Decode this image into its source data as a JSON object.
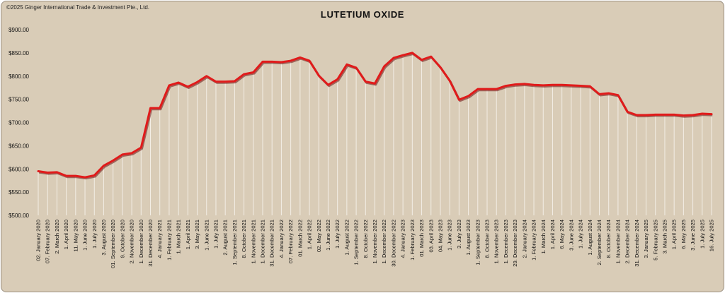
{
  "copyright": "©2025 Ginger International Trade & Investment Pte., Ltd.",
  "chart_data": {
    "type": "line",
    "title": "LUTETIUM OXIDE",
    "xlabel": "",
    "ylabel": "",
    "ylim": [
      500,
      900
    ],
    "y_ticks": [
      "$500.00",
      "$550.00",
      "$600.00",
      "$650.00",
      "$700.00",
      "$750.00",
      "$800.00",
      "$850.00",
      "$900.00"
    ],
    "grid": false,
    "legend": "none",
    "line_color": "#e01b1b",
    "drop_line_color": "#f3eee6",
    "categories": [
      "02. January 2020",
      "07. February 2020",
      "2. March 2020",
      "1. April 2020",
      "11. May 2020",
      "1. June 2020",
      "1. July 2020",
      "3. August 2020",
      "01. September 2020",
      "9. October 2020",
      "2. November 2020",
      "1. December 2020",
      "31. December 2020",
      "4. January 2021",
      "1. February 2021",
      "1. March 2021",
      "1. April 2021",
      "3. May 2021",
      "1. June 2021",
      "1. July 2021",
      "2. August 2021",
      "1. September 2021",
      "8. October 2021",
      "1. November 2021",
      "1. December 2021",
      "31. December 2021",
      "4. January 2022",
      "07. February 2022",
      "01. March 2022",
      "1. April 2022",
      "02. May 2022",
      "1. June 2022",
      "1. July 2022",
      "1. August 2022",
      "1. September 2022",
      "8. October 2022",
      "1. November 2022",
      "1. December 2022",
      "30. December 2022",
      "4. January 2023",
      "1. February 2023",
      "01. March 2023",
      "03. April 2023",
      "04. May 2023",
      "1. June 2023",
      "3. July 2023",
      "1. August 2023",
      "1. September 2023",
      "8. October 2023",
      "1. November 2023",
      "1. December 2023",
      "29. December 2023",
      "2. January 2024",
      "1. February 2024",
      "1. March 2024",
      "1. April 2024",
      "6. May 2024",
      "3. June 2024",
      "1. July 2024",
      "1. August 2024",
      "2. September 2024",
      "8. October 2024",
      "1. November 2024",
      "2. December 2024",
      "31. December 2024",
      "3. January 2025",
      "5. February 2025",
      "3. March 2025",
      "1. April 2025",
      "6. May 2025",
      "3. June 2025",
      "1. July 2025",
      "16. July 2025"
    ],
    "series": [
      {
        "values": [
          595,
          592,
          593,
          585,
          585,
          582,
          586,
          607,
          618,
          631,
          634,
          646,
          731,
          731,
          780,
          786,
          777,
          787,
          800,
          788,
          788,
          789,
          804,
          808,
          831,
          831,
          830,
          833,
          840,
          833,
          801,
          781,
          793,
          825,
          818,
          788,
          784,
          821,
          839,
          845,
          850,
          835,
          842,
          819,
          790,
          749,
          757,
          772,
          772,
          772,
          779,
          782,
          783,
          781,
          780,
          781,
          781,
          780,
          779,
          778,
          761,
          763,
          759,
          723,
          716,
          716,
          717,
          717,
          717,
          715,
          716,
          719,
          718
        ]
      }
    ]
  }
}
